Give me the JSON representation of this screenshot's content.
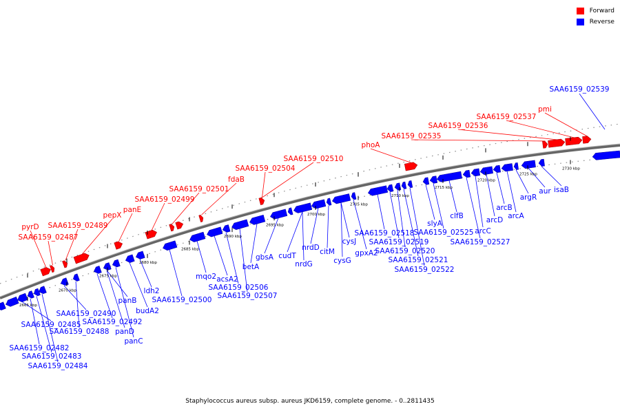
{
  "colors": {
    "forward": "#ff0000",
    "reverse": "#0000ff",
    "axis": "#888888"
  },
  "legend": [
    {
      "label": "Forward",
      "color": "#ff0000"
    },
    {
      "label": "Reverse",
      "color": "#0000ff"
    }
  ],
  "caption": "Staphylococcus aureus subsp. aureus JKD6159, complete genome. - 0..2811435",
  "tick_labels": [
    "2665 kbp",
    "2670 kbp",
    "2675 kbp",
    "2680 kbp",
    "2685 kbp",
    "2690 kbp",
    "2695 kbp",
    "2700 kbp",
    "2705 kbp",
    "2710 kbp",
    "2715 kbp",
    "2720 kbp",
    "2725 kbp",
    "2730 kbp"
  ],
  "forward_labels": [
    "pyrD",
    "SAA6159_02487",
    "SAA6159_02489",
    "pepX",
    "panE",
    "SAA6159_02499",
    "SAA6159_02501",
    "fdaB",
    "SAA6159_02504",
    "SAA6159_02510",
    "phoA",
    "SAA6159_02535",
    "SAA6159_02536",
    "SAA6159_02537",
    "pmi"
  ],
  "reverse_labels": [
    "SAA6159_02539",
    "SAA6159_02482",
    "SAA6159_02483",
    "SAA6159_02484",
    "SAA6159_02485",
    "SAA6159_02488",
    "SAA6159_02490",
    "SAA6159_02492",
    "panD",
    "panC",
    "panB",
    "budA2",
    "ldh2",
    "SAA6159_02500",
    "mqo2",
    "acsA2",
    "SAA6159_02506",
    "SAA6159_02507",
    "betA",
    "gbsA",
    "cudT",
    "nrdG",
    "nrdD",
    "citM",
    "cysG",
    "cysJ",
    "gpxA2",
    "SAA6159_02518",
    "SAA6159_02519",
    "SAA6159_02520",
    "SAA6159_02521",
    "SAA6159_02522",
    "slyA",
    "SAA6159_02525",
    "SAA6159_02527",
    "clfB",
    "arcC",
    "arcD",
    "arcB",
    "arcA",
    "argR",
    "aur",
    "isaB"
  ]
}
